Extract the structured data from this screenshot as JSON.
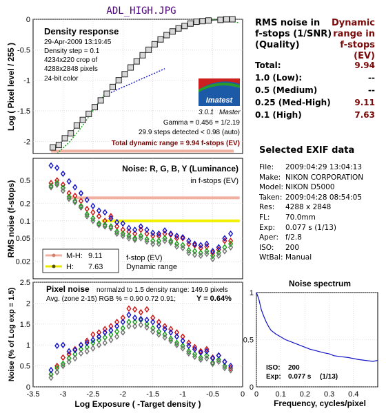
{
  "file_title": "ADL_HIGH.JPG",
  "colors": {
    "title": "#4a0078",
    "maroon": "#7a0a0a",
    "red": "#d01010",
    "green": "#10a010",
    "blue": "#1010c8",
    "gray": "#707070",
    "salmon": "#f0b0a0",
    "yellow": "#f0f000"
  },
  "density_info": {
    "title": "Density response",
    "lines": [
      "29-Apr-2009 13:19:45",
      "Density step = 0.1",
      "4234x220 crop of",
      "4288x2848 pixels",
      "24-bit color"
    ],
    "gamma": "Gamma = 0.456 = 1/2.19",
    "steps": "29.9 steps detected < 0.98 (auto)",
    "total": "Total dynamic range = 9.94 f-stops (EV)",
    "logo": "Imatest",
    "version": "3.0.1",
    "edition": "Master"
  },
  "noise_info": {
    "title": "Noise: R, G, B, Y (Luminance)",
    "sub": "in f-stops (EV)",
    "legend": [
      {
        "label": "M-H:",
        "value": "9.11"
      },
      {
        "label": "H:",
        "value": "7.63"
      }
    ],
    "fstop": "f-stop (EV)",
    "dynrange": "Dynamic range"
  },
  "pixel_info": {
    "title": "Pixel noise",
    "norm": "normalzd to 1.5 density range: 149.9 pixels",
    "avg": "Avg. (zone 2-15) RGB % = 0.90  0.72  0.91;",
    "y": "Y = 0.64%"
  },
  "spectrum_info": {
    "title": "Noise spectrum",
    "iso_label": "ISO:",
    "iso": "200",
    "exp_label": "Exp:",
    "exp": "0.077 s",
    "exp_frac": "(1/13)"
  },
  "dr_table": {
    "header_left": [
      "RMS noise in",
      "f-stops (1/SNR)",
      "(Quality)"
    ],
    "header_right": [
      "Dynamic",
      "range in",
      "f-stops (EV)"
    ],
    "rows": [
      {
        "label": "Total:",
        "value": "9.94"
      },
      {
        "label": "1.0   (Low):",
        "value": "--"
      },
      {
        "label": "0.5   (Medium)",
        "value": "--"
      },
      {
        "label": "0.25 (Med-High)",
        "value": "9.11"
      },
      {
        "label": "0.1   (High)",
        "value": "7.63"
      }
    ]
  },
  "exif": {
    "title": "Selected EXIF data",
    "rows": [
      {
        "k": "File:",
        "v": "2009:04:29 13:04:13"
      },
      {
        "k": "Make:",
        "v": "NIKON CORPORATION"
      },
      {
        "k": "Model:",
        "v": "NIKON D5000"
      },
      {
        "k": "Taken:",
        "v": "2009:04:28 08:54:05"
      },
      {
        "k": "Res:",
        "v": "4288 x 2848"
      },
      {
        "k": "FL:",
        "v": "70.0mm"
      },
      {
        "k": "Exp:",
        "v": "0.077 s  (1/13)"
      },
      {
        "k": "Aper:",
        "v": "f/2.8"
      },
      {
        "k": "ISO:",
        "v": "200"
      },
      {
        "k": "WtBal:",
        "v": "Manual"
      }
    ]
  },
  "chart_data": [
    {
      "type": "scatter",
      "title": "Density response",
      "ylabel": "Log ( Pixel level / 255 )",
      "xlim": [
        -3.5,
        0
      ],
      "ylim": [
        -2.2,
        0
      ],
      "yticks": [
        0,
        -0.5,
        -1,
        -1.5,
        -2
      ],
      "ytick_labels": [
        "0",
        "-0.5",
        "-1",
        "-1.5",
        "-2"
      ],
      "points": [
        {
          "x": -3.17,
          "y": -2.1
        },
        {
          "x": -3.07,
          "y": -2.06
        },
        {
          "x": -2.97,
          "y": -1.95
        },
        {
          "x": -2.87,
          "y": -1.87
        },
        {
          "x": -2.77,
          "y": -1.74
        },
        {
          "x": -2.67,
          "y": -1.65
        },
        {
          "x": -2.57,
          "y": -1.55
        },
        {
          "x": -2.47,
          "y": -1.44
        },
        {
          "x": -2.37,
          "y": -1.33
        },
        {
          "x": -2.27,
          "y": -1.22
        },
        {
          "x": -2.17,
          "y": -1.11
        },
        {
          "x": -2.07,
          "y": -1.0
        },
        {
          "x": -1.97,
          "y": -0.9
        },
        {
          "x": -1.87,
          "y": -0.79
        },
        {
          "x": -1.77,
          "y": -0.69
        },
        {
          "x": -1.67,
          "y": -0.59
        },
        {
          "x": -1.57,
          "y": -0.5
        },
        {
          "x": -1.47,
          "y": -0.41
        },
        {
          "x": -1.37,
          "y": -0.33
        },
        {
          "x": -1.27,
          "y": -0.26
        },
        {
          "x": -1.17,
          "y": -0.2
        },
        {
          "x": -1.07,
          "y": -0.15
        },
        {
          "x": -0.97,
          "y": -0.11
        },
        {
          "x": -0.87,
          "y": -0.07
        },
        {
          "x": -0.77,
          "y": -0.04
        },
        {
          "x": -0.67,
          "y": -0.03
        },
        {
          "x": -0.57,
          "y": -0.02
        },
        {
          "x": -0.37,
          "y": -0.01
        },
        {
          "x": -0.27,
          "y": 0.0
        },
        {
          "x": -0.17,
          "y": 0.0
        }
      ],
      "gamma_fit": {
        "x0": -2.2,
        "y0": -1.2,
        "x1": -1.3,
        "y1": -0.81
      },
      "green_fit": {
        "x": [
          -3.1,
          -2.9,
          -2.7,
          -2.5,
          -2.3
        ],
        "y": [
          -2.2,
          -2.02,
          -1.78,
          -1.5,
          -1.22
        ]
      },
      "green_top": {
        "x": [
          -0.6,
          -0.4,
          -0.2,
          -0.05
        ],
        "y": [
          0.0,
          -0.01,
          -0.03,
          -0.06
        ]
      },
      "dr_bar": {
        "x0": -3.2,
        "x1": -0.15,
        "y": -2.16
      }
    },
    {
      "type": "scatter",
      "title": "Noise: R, G, B, Y (Luminance)",
      "ylabel": "RMS noise (f-stops)",
      "xlim": [
        -3.5,
        0
      ],
      "ylim": [
        0.01,
        1.2
      ],
      "yscale": "log",
      "yticks": [
        0.5,
        0.2,
        0.1,
        0.05,
        0.02
      ],
      "ytick_labels": [
        "0.5",
        "0.2",
        "0.1",
        "0.05",
        "0.02"
      ],
      "x": [
        -3.2,
        -3.1,
        -3.0,
        -2.9,
        -2.8,
        -2.7,
        -2.6,
        -2.5,
        -2.4,
        -2.3,
        -2.2,
        -2.1,
        -2.0,
        -1.9,
        -1.8,
        -1.7,
        -1.6,
        -1.5,
        -1.4,
        -1.3,
        -1.2,
        -1.1,
        -1.0,
        -0.9,
        -0.8,
        -0.7,
        -0.6,
        -0.5,
        -0.4,
        -0.3,
        -0.2
      ],
      "series": [
        {
          "name": "R",
          "values": [
            0.45,
            0.5,
            0.42,
            0.3,
            0.27,
            0.22,
            0.16,
            0.14,
            0.12,
            0.1,
            0.12,
            0.08,
            0.07,
            0.065,
            0.06,
            0.07,
            0.06,
            0.055,
            0.055,
            0.06,
            0.058,
            0.05,
            0.05,
            0.04,
            0.038,
            0.034,
            0.036,
            0.028,
            0.032,
            0.045,
            0.045
          ]
        },
        {
          "name": "G",
          "values": [
            0.4,
            0.45,
            0.37,
            0.26,
            0.22,
            0.18,
            0.13,
            0.11,
            0.09,
            0.085,
            0.08,
            0.065,
            0.06,
            0.055,
            0.05,
            0.055,
            0.048,
            0.045,
            0.045,
            0.05,
            0.045,
            0.04,
            0.038,
            0.031,
            0.03,
            0.028,
            0.03,
            0.025,
            0.028,
            0.035,
            0.04
          ]
        },
        {
          "name": "B",
          "values": [
            0.9,
            0.82,
            0.65,
            0.48,
            0.38,
            0.3,
            0.23,
            0.18,
            0.15,
            0.14,
            0.11,
            0.095,
            0.09,
            0.075,
            0.07,
            0.08,
            0.07,
            0.062,
            0.06,
            0.068,
            0.06,
            0.055,
            0.052,
            0.045,
            0.04,
            0.038,
            0.04,
            0.03,
            0.035,
            0.05,
            0.06
          ]
        },
        {
          "name": "Y",
          "values": [
            0.38,
            0.42,
            0.33,
            0.24,
            0.21,
            0.17,
            0.12,
            0.1,
            0.085,
            0.08,
            0.075,
            0.06,
            0.055,
            0.05,
            0.047,
            0.05,
            0.044,
            0.04,
            0.04,
            0.045,
            0.042,
            0.036,
            0.034,
            0.028,
            0.026,
            0.025,
            0.027,
            0.022,
            0.025,
            0.03,
            0.035
          ]
        }
      ],
      "bands": [
        {
          "label": "M-H",
          "value": 0.25,
          "x0": -2.9,
          "x1": -0.05
        },
        {
          "label": "H",
          "value": 0.1,
          "x0": -2.35,
          "x1": -0.05
        }
      ]
    },
    {
      "type": "scatter",
      "title": "Pixel noise",
      "xlabel": "Log Exposure ( -Target density )",
      "ylabel": "Noise (% of Log exp = 1.5)",
      "xlim": [
        -3.5,
        0
      ],
      "ylim": [
        0,
        2.5
      ],
      "xticks": [
        -3.5,
        -3,
        -2.5,
        -2,
        -1.5,
        -1,
        -0.5,
        0
      ],
      "yticks": [
        0,
        0.5,
        1,
        1.5,
        2,
        2.5
      ],
      "ytick_labels": [
        "0",
        "0.5",
        "1",
        "1.5",
        "2",
        "2.5"
      ],
      "x": [
        -3.2,
        -3.1,
        -3.0,
        -2.9,
        -2.8,
        -2.7,
        -2.6,
        -2.5,
        -2.4,
        -2.3,
        -2.2,
        -2.1,
        -2.0,
        -1.9,
        -1.8,
        -1.7,
        -1.6,
        -1.5,
        -1.4,
        -1.3,
        -1.2,
        -1.1,
        -1.0,
        -0.9,
        -0.8,
        -0.7,
        -0.6,
        -0.5,
        -0.4,
        -0.3,
        -0.2
      ],
      "series": [
        {
          "name": "R",
          "values": [
            0.3,
            0.5,
            0.7,
            0.78,
            0.9,
            1.0,
            1.1,
            1.25,
            1.3,
            1.38,
            1.45,
            1.55,
            1.65,
            1.87,
            1.85,
            1.78,
            1.85,
            1.65,
            1.55,
            1.45,
            1.38,
            1.3,
            1.2,
            1.05,
            0.95,
            0.85,
            0.9,
            0.7,
            0.75,
            0.6,
            0.45
          ]
        },
        {
          "name": "G",
          "values": [
            0.3,
            0.45,
            0.55,
            0.68,
            0.78,
            0.9,
            0.95,
            1.05,
            1.12,
            1.18,
            1.25,
            1.32,
            1.4,
            1.55,
            1.55,
            1.6,
            1.5,
            1.4,
            1.32,
            1.25,
            1.15,
            1.05,
            0.98,
            0.85,
            0.78,
            0.7,
            0.75,
            0.58,
            0.65,
            0.5,
            0.4
          ]
        },
        {
          "name": "B",
          "values": [
            0.4,
            0.98,
            1.0,
            0.85,
            0.88,
            1.0,
            1.05,
            1.12,
            1.2,
            1.3,
            1.35,
            1.45,
            1.55,
            1.72,
            1.65,
            1.62,
            1.6,
            1.55,
            1.45,
            1.38,
            1.3,
            1.2,
            1.1,
            0.98,
            0.9,
            0.82,
            0.85,
            0.68,
            0.75,
            0.6,
            0.5
          ]
        },
        {
          "name": "Y",
          "values": [
            0.22,
            0.35,
            0.5,
            0.6,
            0.68,
            0.8,
            0.85,
            0.92,
            1.0,
            1.05,
            1.12,
            1.2,
            1.3,
            1.45,
            1.45,
            1.48,
            1.42,
            1.32,
            1.25,
            1.18,
            1.1,
            1.0,
            0.92,
            0.8,
            0.72,
            0.65,
            0.68,
            0.55,
            0.6,
            0.45,
            0.4
          ]
        }
      ]
    },
    {
      "type": "line",
      "title": "Noise spectrum",
      "xlabel": "Frequency, cycles/pixel",
      "xlim": [
        0,
        0.5
      ],
      "ylim": [
        0,
        1
      ],
      "xticks": [
        0,
        0.1,
        0.2,
        0.3,
        0.4
      ],
      "yticks": [
        0,
        0.5,
        1
      ],
      "ytick_labels": [
        "0",
        "0.5",
        "1"
      ],
      "x": [
        0,
        0.01,
        0.02,
        0.03,
        0.04,
        0.05,
        0.06,
        0.08,
        0.1,
        0.12,
        0.14,
        0.16,
        0.18,
        0.2,
        0.22,
        0.25,
        0.28,
        0.3,
        0.32,
        0.35,
        0.38,
        0.4,
        0.42,
        0.45,
        0.48,
        0.5
      ],
      "y": [
        1.0,
        0.93,
        0.82,
        0.75,
        0.69,
        0.64,
        0.6,
        0.56,
        0.53,
        0.5,
        0.48,
        0.46,
        0.44,
        0.42,
        0.4,
        0.38,
        0.36,
        0.35,
        0.33,
        0.32,
        0.31,
        0.3,
        0.29,
        0.28,
        0.27,
        0.28
      ]
    }
  ]
}
